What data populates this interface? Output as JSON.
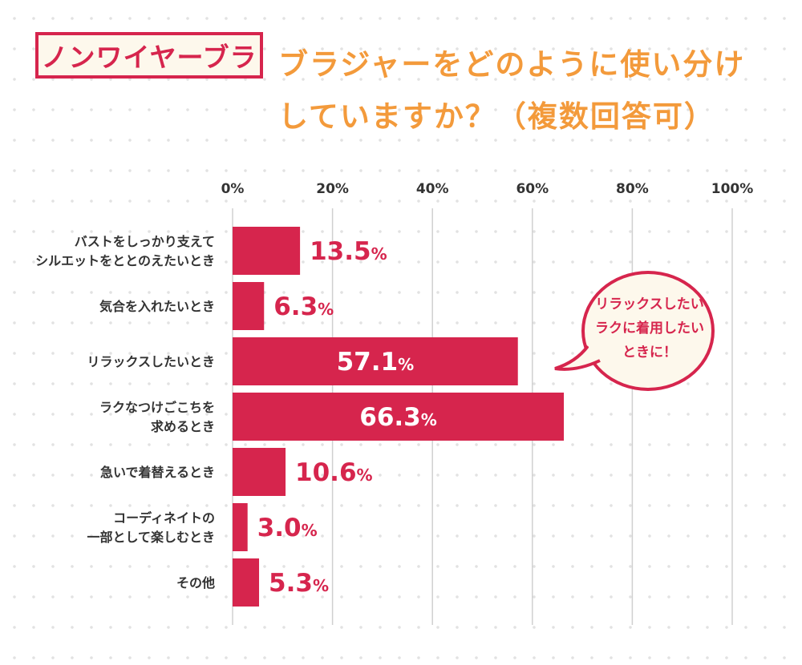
{
  "header": {
    "tag": "ノンワイヤーブラ",
    "title_line1": "ブラジャーをどのように使い分け",
    "title_line2": "していますか？（複数回答可）"
  },
  "callout": {
    "lines": [
      "リラックスしたい",
      "ラクに着用したい",
      "ときに！"
    ]
  },
  "colors": {
    "bar": "#d6254d",
    "title": "#f39a3b",
    "grid": "#d0d0d0"
  },
  "chart_data": {
    "type": "bar",
    "orientation": "horizontal",
    "categories": [
      [
        "バストをしっかり支えて",
        "シルエットをととのえたいとき"
      ],
      [
        "気合を入れたいとき"
      ],
      [
        "リラックスしたいとき"
      ],
      [
        "ラクなつけごこちを",
        "求めるとき"
      ],
      [
        "急いで着替えるとき"
      ],
      [
        "コーディネイトの",
        "一部として楽しむとき"
      ],
      [
        "その他"
      ]
    ],
    "values": [
      13.5,
      6.3,
      57.1,
      66.3,
      10.6,
      3.0,
      5.3
    ],
    "unit": "%",
    "xlim": [
      0,
      100
    ],
    "xticks": [
      "0%",
      "20%",
      "40%",
      "60%",
      "80%",
      "100%"
    ],
    "grid": true
  }
}
